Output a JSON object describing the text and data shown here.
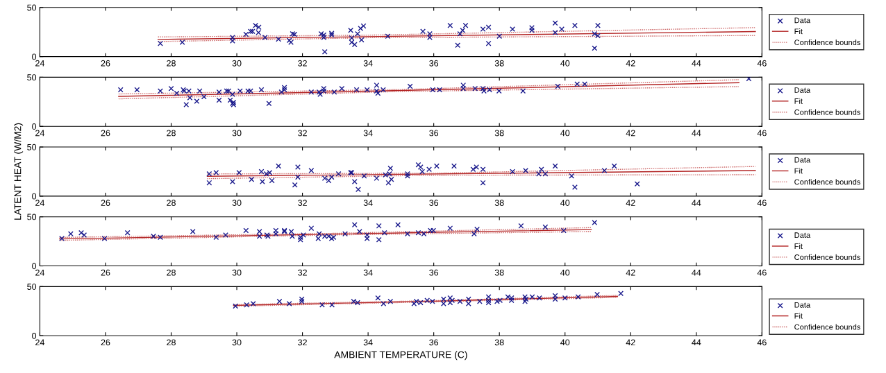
{
  "chart_data": [
    {
      "type": "scatter",
      "xlim": [
        24,
        46
      ],
      "xticks": [
        24,
        26,
        28,
        30,
        32,
        34,
        36,
        38,
        40,
        42,
        44,
        46
      ],
      "ylim": [
        0,
        50
      ],
      "yticks": [
        0,
        50
      ],
      "legend": "right",
      "series": [
        {
          "name": "Data",
          "type": "scatter",
          "color": "#1a1a8c",
          "marker": "cross",
          "x": [
            27.67,
            28.34,
            29.87,
            29.87,
            30.28,
            30.42,
            30.48,
            30.57,
            30.67,
            30.66,
            30.86,
            31.27,
            31.6,
            31.65,
            31.7,
            31.76,
            32.57,
            32.65,
            32.65,
            32.68,
            32.89,
            32.89,
            33.47,
            33.5,
            33.5,
            33.59,
            33.68,
            33.77,
            33.86,
            33.8,
            34.6,
            35.67,
            35.88,
            35.88,
            36.5,
            36.73,
            36.8,
            36.88,
            36.97,
            37.5,
            37.67,
            37.67,
            38.0,
            38.4,
            38.99,
            38.99,
            39.7,
            39.7,
            39.9,
            40.3,
            40.9,
            40.9,
            41.0,
            41.0
          ],
          "values": [
            13.4,
            14.6,
            15.9,
            19.5,
            22.6,
            25.6,
            25.6,
            31.7,
            29.9,
            24.4,
            19.5,
            17.7,
            16.5,
            14.6,
            23.2,
            22.6,
            23.2,
            22,
            19.5,
            4.9,
            23.8,
            22,
            26.8,
            18.9,
            14.6,
            12.2,
            23.2,
            28.7,
            31.1,
            17.1,
            20.7,
            25.6,
            23.2,
            19.5,
            31.7,
            11.6,
            23.2,
            26.8,
            31.7,
            28,
            29.9,
            13.4,
            20.7,
            28,
            29.3,
            26.8,
            34.1,
            24.4,
            28,
            31.7,
            23.2,
            8.5,
            31.7,
            21.3
          ]
        },
        {
          "name": "Fit",
          "type": "line",
          "color": "#b22222",
          "line_style": "solid",
          "x": [
            27.6,
            45.8
          ],
          "values": [
            17.5,
            25.5
          ]
        },
        {
          "name": "Confidence bounds",
          "type": "line",
          "color": "#cc6666",
          "line_style": "dotted",
          "x": [
            27.6,
            34,
            45.8
          ],
          "values": [
            15.3,
            19.2,
            21.5
          ]
        },
        {
          "type": "line",
          "color": "#cc6666",
          "line_style": "dotted",
          "x": [
            27.6,
            34,
            45.8
          ],
          "values": [
            20.0,
            21.8,
            29.5
          ]
        }
      ]
    },
    {
      "type": "scatter",
      "xlim": [
        24,
        46
      ],
      "xticks": [
        24,
        26,
        28,
        30,
        32,
        34,
        36,
        38,
        40,
        42,
        44,
        46
      ],
      "ylim": [
        0,
        50
      ],
      "yticks": [
        0,
        50
      ],
      "legend": "right",
      "series": [
        {
          "name": "Data",
          "type": "scatter",
          "color": "#1a1a8c",
          "marker": "cross",
          "x": [
            26.46,
            26.96,
            27.67,
            28.0,
            28.17,
            28.37,
            28.4,
            28.46,
            28.54,
            28.57,
            28.78,
            28.87,
            29.0,
            29.46,
            29.46,
            29.69,
            29.75,
            29.8,
            29.87,
            29.9,
            29.9,
            29.87,
            30.1,
            30.34,
            30.42,
            30.75,
            30.98,
            31.36,
            31.45,
            31.45,
            32.27,
            32.51,
            32.54,
            32.65,
            32.65,
            32.97,
            33.2,
            33.65,
            33.97,
            34.26,
            34.26,
            34.3,
            34.46,
            35.28,
            35.97,
            36.18,
            36.9,
            36.9,
            37.26,
            37.5,
            37.53,
            37.7,
            37.99,
            38.72,
            39.78,
            40.37,
            40.6,
            45.6
          ],
          "values": [
            37.2,
            37.2,
            36,
            38.4,
            33.7,
            37.2,
            36,
            22.1,
            36,
            29.1,
            25.6,
            36,
            30.2,
            34.9,
            26.7,
            36,
            36,
            26.7,
            32.6,
            24.4,
            22.1,
            23.3,
            36,
            36,
            36,
            37.2,
            23.3,
            34.9,
            39.5,
            37.2,
            34.9,
            34.9,
            32.6,
            38.4,
            36,
            34.9,
            38.4,
            37.2,
            37.2,
            41.9,
            36,
            33.7,
            37.2,
            40.7,
            37.2,
            37.2,
            41.9,
            38.4,
            38.4,
            38.4,
            36,
            37.2,
            36,
            36,
            40.7,
            43,
            43,
            48.5
          ]
        },
        {
          "name": "Fit",
          "type": "line",
          "color": "#b22222",
          "line_style": "solid",
          "x": [
            26.4,
            35,
            45.3
          ],
          "values": [
            30.5,
            36.5,
            44.5
          ]
        },
        {
          "name": "Confidence bounds",
          "type": "line",
          "color": "#cc6666",
          "line_style": "dotted",
          "x": [
            26.4,
            35,
            45.3
          ],
          "values": [
            28,
            35.5,
            40.5
          ]
        },
        {
          "type": "line",
          "color": "#cc6666",
          "line_style": "dotted",
          "x": [
            26.4,
            35,
            45.3
          ],
          "values": [
            33,
            37.5,
            47.5
          ]
        }
      ]
    },
    {
      "type": "scatter",
      "xlim": [
        24,
        46
      ],
      "xticks": [
        24,
        26,
        28,
        30,
        32,
        34,
        36,
        38,
        40,
        42,
        44,
        46
      ],
      "ylim": [
        0,
        50
      ],
      "yticks": [
        0,
        50
      ],
      "legend": "right",
      "ylabel": "LATENT HEAT (W/M2)",
      "series": [
        {
          "name": "Data",
          "type": "scatter",
          "color": "#1a1a8c",
          "marker": "cross",
          "x": [
            29.16,
            29.16,
            29.37,
            29.87,
            30.07,
            30.45,
            30.75,
            30.78,
            30.9,
            31.0,
            31.07,
            31.27,
            31.77,
            31.86,
            31.86,
            32.27,
            32.68,
            32.8,
            32.89,
            33.1,
            33.47,
            33.5,
            33.59,
            33.7,
            33.88,
            34.26,
            34.53,
            34.62,
            34.65,
            34.68,
            34.71,
            35.2,
            35.2,
            35.53,
            35.6,
            35.65,
            35.86,
            36.09,
            36.62,
            37.2,
            37.3,
            37.5,
            37.5,
            38.4,
            38.8,
            39.2,
            39.28,
            39.4,
            39.7,
            40.2,
            40.3,
            41.2,
            41.5,
            42.2
          ],
          "values": [
            22.7,
            13.6,
            23.9,
            14.8,
            23.9,
            17,
            25,
            14.8,
            22.7,
            23.9,
            15.9,
            30.7,
            11.4,
            29.5,
            19.3,
            26.1,
            18.2,
            15.9,
            19.3,
            22.7,
            23.9,
            23.9,
            14.8,
            6.8,
            20.5,
            18.2,
            21.6,
            13.6,
            22.7,
            28.4,
            17,
            22.7,
            20.5,
            31.8,
            29.5,
            25,
            27.3,
            30.7,
            30.7,
            27.3,
            29.5,
            27.3,
            13.6,
            25,
            26.1,
            22.7,
            27.3,
            22.7,
            30.7,
            20.5,
            9.1,
            26.1,
            30.7,
            12.5
          ]
        },
        {
          "name": "Fit",
          "type": "line",
          "color": "#b22222",
          "line_style": "solid",
          "x": [
            29.1,
            45.8
          ],
          "values": [
            20.2,
            26
          ]
        },
        {
          "name": "Confidence bounds",
          "type": "line",
          "color": "#cc6666",
          "line_style": "dotted",
          "x": [
            29.1,
            36,
            45.8
          ],
          "values": [
            17.8,
            21.3,
            21.8
          ]
        },
        {
          "type": "line",
          "color": "#cc6666",
          "line_style": "dotted",
          "x": [
            29.1,
            36,
            45.8
          ],
          "values": [
            22.6,
            23.3,
            30.2
          ]
        }
      ]
    },
    {
      "type": "scatter",
      "xlim": [
        24,
        46
      ],
      "xticks": [
        24,
        26,
        28,
        30,
        32,
        34,
        36,
        38,
        40,
        42,
        44,
        46
      ],
      "ylim": [
        0,
        50
      ],
      "yticks": [
        0,
        50
      ],
      "legend": "bottom right",
      "series": [
        {
          "name": "Data",
          "type": "scatter",
          "color": "#1a1a8c",
          "marker": "cross",
          "x": [
            24.67,
            24.94,
            25.26,
            25.35,
            25.97,
            26.67,
            27.46,
            27.67,
            28.66,
            29.37,
            29.66,
            30.28,
            30.69,
            30.69,
            30.92,
            30.95,
            31.19,
            31.19,
            31.45,
            31.45,
            31.66,
            31.69,
            31.94,
            31.94,
            32.03,
            32.27,
            32.48,
            32.51,
            32.68,
            32.8,
            32.89,
            32.95,
            33.3,
            33.59,
            33.74,
            33.97,
            33.97,
            34.33,
            34.33,
            34.5,
            34.91,
            35.2,
            35.53,
            35.7,
            35.9,
            35.99,
            36.5,
            37.23,
            37.32,
            38.66,
            39.4,
            39.96,
            40.9
          ],
          "values": [
            27.9,
            32.6,
            33.7,
            31.4,
            27.9,
            33.7,
            30.2,
            29.1,
            34.9,
            29.1,
            31.4,
            36,
            34.9,
            30.2,
            31.4,
            30.2,
            36,
            32.6,
            36,
            34.9,
            34.9,
            30.2,
            29.1,
            26.7,
            31.4,
            38.4,
            27.9,
            32.6,
            30.2,
            30.2,
            27.9,
            29.1,
            32.6,
            41.9,
            34.9,
            31.4,
            27.9,
            40.7,
            26.7,
            33.7,
            41.9,
            32.6,
            33.7,
            32.6,
            36,
            36,
            38.4,
            32.6,
            37.2,
            40.7,
            39.5,
            36,
            44.2
          ]
        },
        {
          "name": "Fit",
          "type": "line",
          "color": "#b22222",
          "line_style": "solid",
          "x": [
            24.6,
            33,
            40.8
          ],
          "values": [
            27.5,
            32.4,
            37
          ]
        },
        {
          "name": "Confidence bounds",
          "type": "line",
          "color": "#cc6666",
          "line_style": "dotted",
          "x": [
            24.6,
            33,
            40.8
          ],
          "values": [
            26,
            31.6,
            35
          ]
        },
        {
          "type": "line",
          "color": "#cc6666",
          "line_style": "dotted",
          "x": [
            24.6,
            33,
            40.8
          ],
          "values": [
            29,
            33.2,
            39
          ]
        }
      ]
    },
    {
      "type": "scatter",
      "xlim": [
        24,
        46
      ],
      "xticks": [
        24,
        26,
        28,
        30,
        32,
        34,
        36,
        38,
        40,
        42,
        44,
        46
      ],
      "ylim": [
        0,
        50
      ],
      "yticks": [
        0,
        50
      ],
      "legend": "bottom right",
      "xlabel": "AMBIENT TEMPERATURE (C)",
      "series": [
        {
          "name": "Data",
          "type": "scatter",
          "color": "#1a1a8c",
          "marker": "cross",
          "x": [
            29.96,
            30.3,
            30.5,
            31.3,
            31.6,
            31.98,
            31.98,
            32.6,
            32.9,
            33.56,
            33.68,
            34.3,
            34.47,
            34.68,
            35.4,
            35.47,
            35.6,
            35.8,
            35.96,
            36.3,
            36.3,
            36.5,
            36.5,
            36.56,
            36.8,
            37.06,
            37.06,
            37.4,
            37.67,
            37.67,
            37.67,
            37.93,
            38.02,
            38.26,
            38.37,
            38.37,
            38.78,
            38.78,
            38.81,
            39.0,
            39.22,
            39.7,
            39.7,
            40.0,
            40.4,
            40.98,
            41.7
          ],
          "values": [
            30.2,
            31.4,
            32.6,
            34.9,
            32.6,
            34.9,
            37.2,
            31.4,
            31.4,
            34.9,
            33.7,
            38.4,
            32.6,
            34.9,
            32.6,
            34.9,
            33.7,
            36,
            34.9,
            37.2,
            32.6,
            38.4,
            33.7,
            36,
            34.9,
            37.2,
            32.6,
            34.9,
            39.5,
            36,
            33.7,
            34.9,
            36,
            39.5,
            38.4,
            36,
            39.5,
            34.9,
            37.2,
            39.5,
            38.4,
            40.7,
            37.2,
            38.4,
            39.5,
            41.9,
            43
          ]
        },
        {
          "name": "Fit",
          "type": "line",
          "color": "#b22222",
          "line_style": "solid",
          "x": [
            29.9,
            36,
            41.6
          ],
          "values": [
            30.8,
            35.1,
            40
          ]
        },
        {
          "name": "Confidence bounds",
          "type": "line",
          "color": "#cc6666",
          "line_style": "dotted",
          "x": [
            29.9,
            36,
            41.6
          ],
          "values": [
            30,
            34.5,
            39
          ]
        },
        {
          "type": "line",
          "color": "#cc6666",
          "line_style": "dotted",
          "x": [
            29.9,
            36,
            41.6
          ],
          "values": [
            31.6,
            35.7,
            41
          ]
        }
      ]
    }
  ]
}
